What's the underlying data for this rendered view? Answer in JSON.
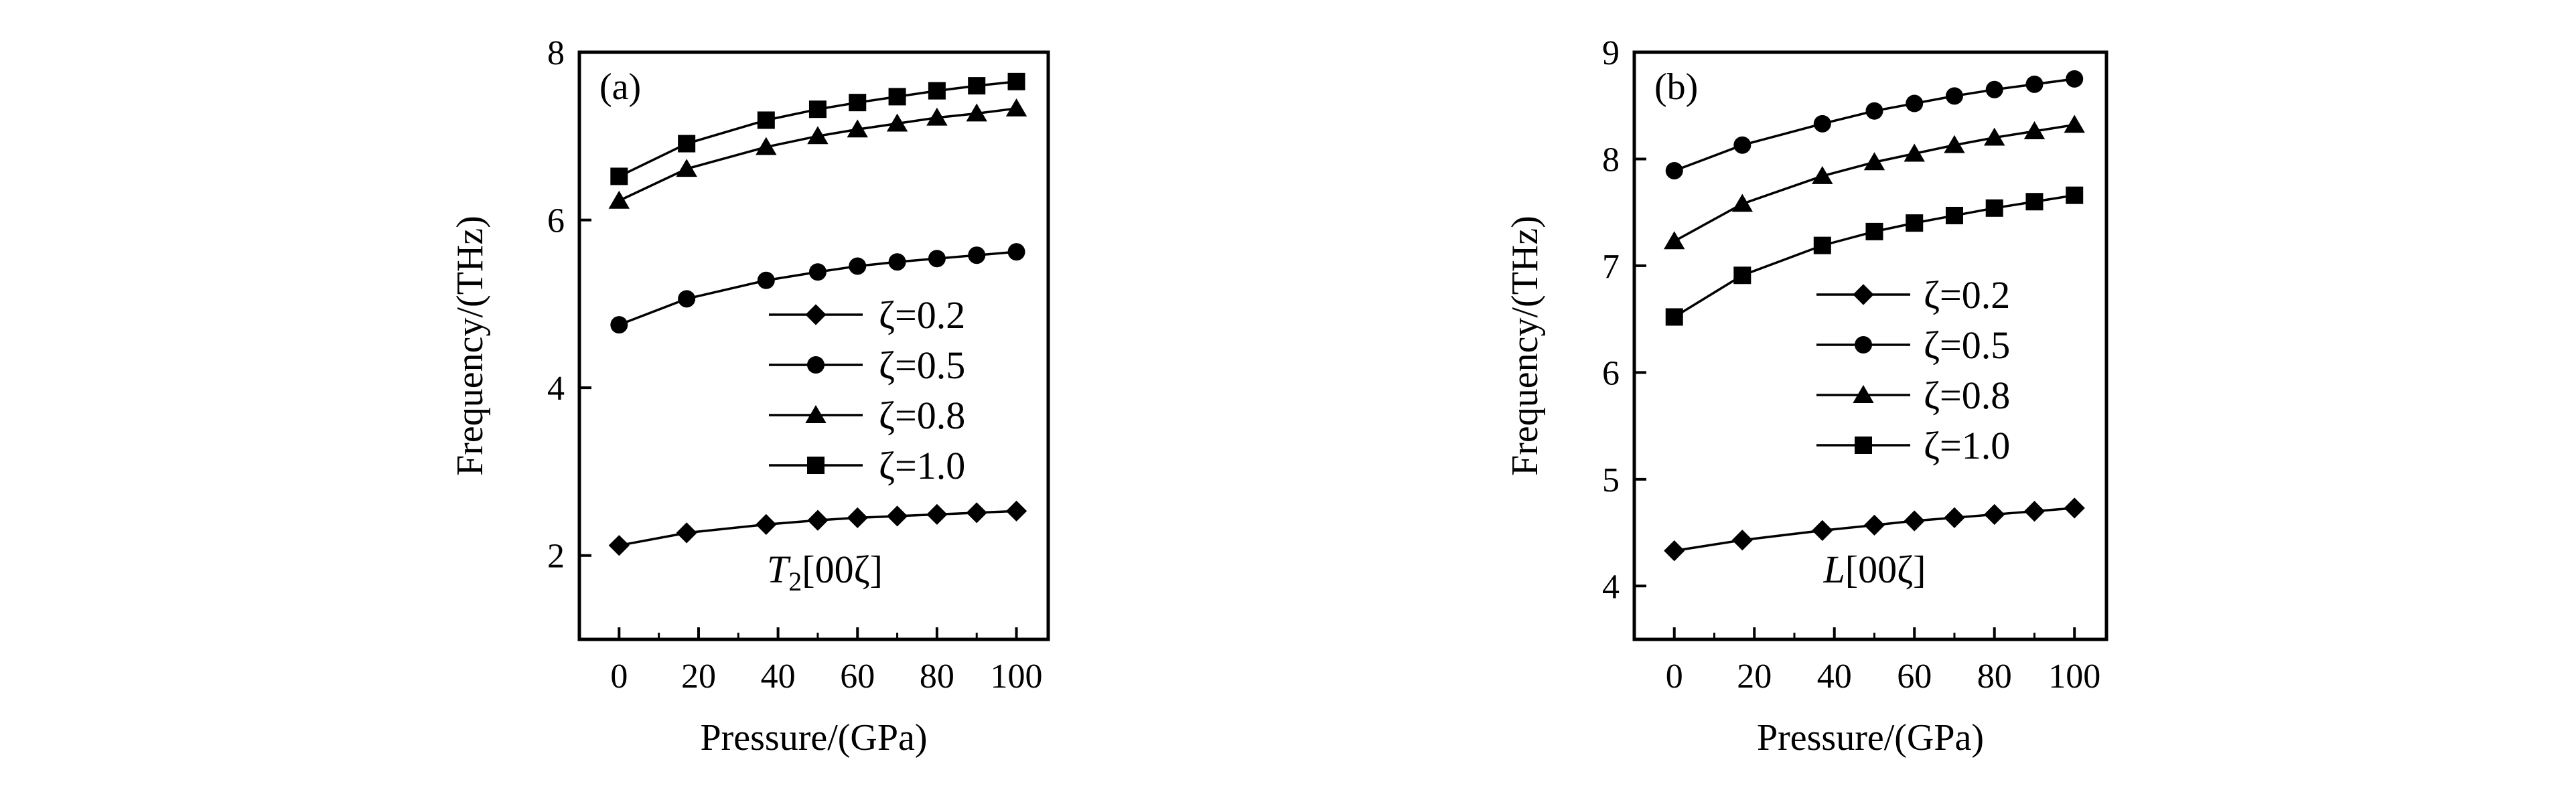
{
  "figure": {
    "colors": {
      "ink": "#000000",
      "background": "#ffffff"
    }
  },
  "chart_data": [
    {
      "type": "line",
      "panel_label": "(a)",
      "mode_label": {
        "symbol": "T",
        "subscript": "2",
        "rest": "[00ζ]"
      },
      "xlabel": "Pressure/(GPa)",
      "ylabel": "Frequency/(THz)",
      "xlim": [
        -10,
        108
      ],
      "ylim": [
        1,
        8
      ],
      "xticks": [
        0,
        20,
        40,
        60,
        80,
        100
      ],
      "yticks": [
        2,
        4,
        6,
        8
      ],
      "legend_position": "center-right",
      "x": [
        0,
        17,
        37,
        50,
        60,
        70,
        80,
        90,
        100
      ],
      "series": [
        {
          "name": "ζ=0.2",
          "marker": "diamond",
          "values": [
            2.12,
            2.27,
            2.37,
            2.42,
            2.45,
            2.47,
            2.49,
            2.51,
            2.53
          ]
        },
        {
          "name": "ζ=0.5",
          "marker": "circle",
          "values": [
            4.75,
            5.06,
            5.28,
            5.38,
            5.45,
            5.5,
            5.54,
            5.58,
            5.62
          ]
        },
        {
          "name": "ζ=0.8",
          "marker": "triangle",
          "values": [
            6.23,
            6.61,
            6.87,
            7.0,
            7.08,
            7.15,
            7.22,
            7.27,
            7.33
          ]
        },
        {
          "name": "ζ=1.0",
          "marker": "square",
          "values": [
            6.52,
            6.91,
            7.19,
            7.32,
            7.4,
            7.47,
            7.54,
            7.6,
            7.65
          ]
        }
      ]
    },
    {
      "type": "line",
      "panel_label": "(b)",
      "mode_label": {
        "symbol": "L",
        "subscript": "",
        "rest": "[00ζ]"
      },
      "xlabel": "Pressure/(GPa)",
      "ylabel": "Frequency/(THz)",
      "xlim": [
        -10,
        108
      ],
      "ylim": [
        3.5,
        9
      ],
      "xticks": [
        0,
        20,
        40,
        60,
        80,
        100
      ],
      "yticks": [
        4,
        5,
        6,
        7,
        8,
        9
      ],
      "legend_position": "center",
      "x": [
        0,
        17,
        37,
        50,
        60,
        70,
        80,
        90,
        100
      ],
      "series": [
        {
          "name": "ζ=0.2",
          "marker": "diamond",
          "values": [
            4.33,
            4.43,
            4.52,
            4.57,
            4.61,
            4.64,
            4.67,
            4.7,
            4.73
          ]
        },
        {
          "name": "ζ=0.5",
          "marker": "circle",
          "values": [
            7.89,
            8.13,
            8.33,
            8.45,
            8.52,
            8.59,
            8.65,
            8.7,
            8.75
          ]
        },
        {
          "name": "ζ=0.8",
          "marker": "triangle",
          "values": [
            7.23,
            7.58,
            7.84,
            7.97,
            8.05,
            8.13,
            8.2,
            8.26,
            8.32
          ]
        },
        {
          "name": "ζ=1.0",
          "marker": "square",
          "values": [
            6.52,
            6.91,
            7.19,
            7.32,
            7.4,
            7.47,
            7.54,
            7.6,
            7.66
          ]
        }
      ]
    }
  ]
}
